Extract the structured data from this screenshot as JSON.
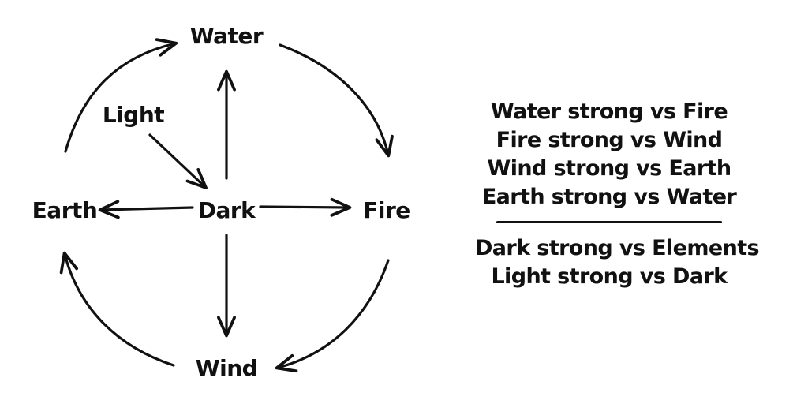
{
  "diagram": {
    "nodes": {
      "water": "Water",
      "fire": "Fire",
      "wind": "Wind",
      "earth": "Earth",
      "dark": "Dark",
      "light": "Light"
    }
  },
  "rules": {
    "element_cycle": [
      "Water strong vs Fire",
      "Fire strong vs Wind",
      "Wind strong vs Earth",
      "Earth strong vs Water"
    ],
    "special": [
      "Dark strong vs Elements",
      "Light strong vs Dark"
    ]
  },
  "colors": {
    "ink": "#111111",
    "background": "#ffffff"
  }
}
